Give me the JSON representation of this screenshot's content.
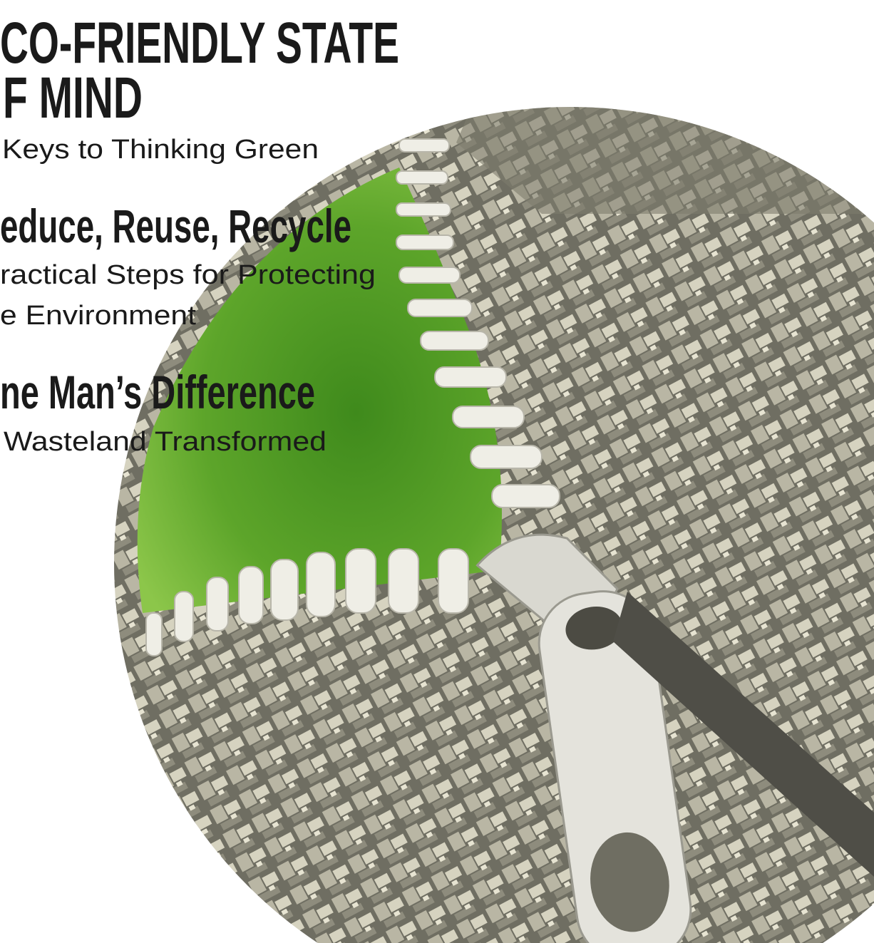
{
  "header": {
    "title_lines": [
      "CO-FRIENDLY STATE",
      "F MIND"
    ],
    "subtitle": "Keys to Thinking Green"
  },
  "stories": [
    {
      "headline": "educe, Reuse, Recycle",
      "deck_lines": [
        "ractical Steps for Protecting",
        "e Environment"
      ]
    },
    {
      "headline": "ne Man’s Difference",
      "deck_lines": [
        "Wasteland Transformed"
      ]
    }
  ]
}
